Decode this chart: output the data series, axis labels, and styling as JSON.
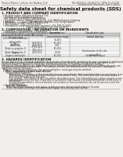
{
  "bg_color": "#f0efeb",
  "header_left": "Product Name: Lithium Ion Battery Cell",
  "header_right_line1": "BU-60000-0 / BU60001 / BPH-01-00010",
  "header_right_line2": "Established / Revision: Dec.7,2009",
  "title": "Safety data sheet for chemical products (SDS)",
  "section1_title": "1. PRODUCT AND COMPANY IDENTIFICATION",
  "section1_lines": [
    "  • Product name: Lithium Ion Battery Cell",
    "  • Product code: Cylindrical-type cell",
    "    BPF B8800, BPF B8800, BPF B8800A",
    "  • Company name:    Baisgo Electric Co., Ltd., Mobile Energy Company",
    "  • Address:           2021  Kennomachi, Sumoto-City, Hyogo, Japan",
    "  • Telephone number:  +81-799-26-4111",
    "  • Fax number:  +81-799-26-4120",
    "  • Emergency telephone number (daytime) +81-799-26-2662",
    "                                    (Night and holiday) +81-799-26-4121"
  ],
  "section2_title": "2. COMPOSITION / INFORMATION ON INGREDIENTS",
  "section2_intro": "  • Substance or preparation: Preparation",
  "section2_sub": "  • Information about the chemical nature of product:",
  "table_col_header1": "Component/chemical name",
  "table_col_header2": "CAS number",
  "table_col_header3": "Concentration /\nConcentration range",
  "table_col_header4": "Classification and\nhazard labeling",
  "table_sub_header": "Several name",
  "table_rows": [
    [
      "Lithium cobalt tantalate\n(LiMnCoTiO)",
      "-",
      "30-40%",
      ""
    ],
    [
      "Iron",
      "7439-89-6",
      "10-25%",
      ""
    ],
    [
      "Aluminium",
      "7429-90-5",
      "2-5%",
      ""
    ],
    [
      "Graphite\n(Flake or graphite-1)\n(Artificial graphite-1)",
      "77782-42-5\n7782-44-0",
      "10-25%",
      ""
    ],
    [
      "Copper",
      "7440-50-8",
      "5-15%",
      "Sensitization of the skin\ngroup No.2"
    ],
    [
      "Organic electrolyte",
      "-",
      "10-20%",
      "Inflammable liquid"
    ]
  ],
  "section3_title": "3. HAZARDS IDENTIFICATION",
  "section3_para1": [
    "For the battery cell, chemical materials are stored in a hermetically sealed metal case, designed to withstand",
    "temperatures during normal operations during normal use. As a result, during normal use, there is no",
    "physical danger of ignition or explosion and thermal-danger of hazardous materials leakage.",
    "  However, if exposed to a fire, added mechanical shocks, decomposed, vented electro-chemically miss-use,",
    "the gas release cannot be operated. The battery cell case will be breached at the extreme, hazardous",
    "materials may be released.",
    "  Moreover, if heated strongly by the surrounding fire, some gas may be emitted."
  ],
  "section3_bullet1": "  • Most important hazard and effects:",
  "section3_sub1": "       Human health effects:",
  "section3_sub1_lines": [
    "           Inhalation: The release of the electrolyte has an anaesthesia action and stimulates in respiratory tract.",
    "           Skin contact: The release of the electrolyte stimulates a skin. The electrolyte skin contact causes a",
    "           sore and stimulation on the skin.",
    "           Eye contact: The release of the electrolyte stimulates eyes. The electrolyte eye contact causes a sore",
    "           and stimulation on the eye. Especially, a substance that causes a strong inflammation of the eyes is",
    "           contained.",
    "           Environmental effects: Since a battery cell remains in the environment, do not throw out it into the",
    "           environment."
  ],
  "section3_bullet2": "  • Specific hazards:",
  "section3_sub2_lines": [
    "       If the electrolyte contacts with water, it will generate detrimental hydrogen fluoride.",
    "       Since the used electrolyte is inflammable liquid, do not bring close to fire."
  ],
  "line_color": "#999999",
  "text_dark": "#111111",
  "text_mid": "#333333",
  "text_light": "#555555",
  "table_header_bg": "#c8c8c8",
  "table_subheader_bg": "#e0e0e0",
  "fs_header": 2.2,
  "fs_title": 4.2,
  "fs_section": 2.8,
  "fs_body": 2.1
}
